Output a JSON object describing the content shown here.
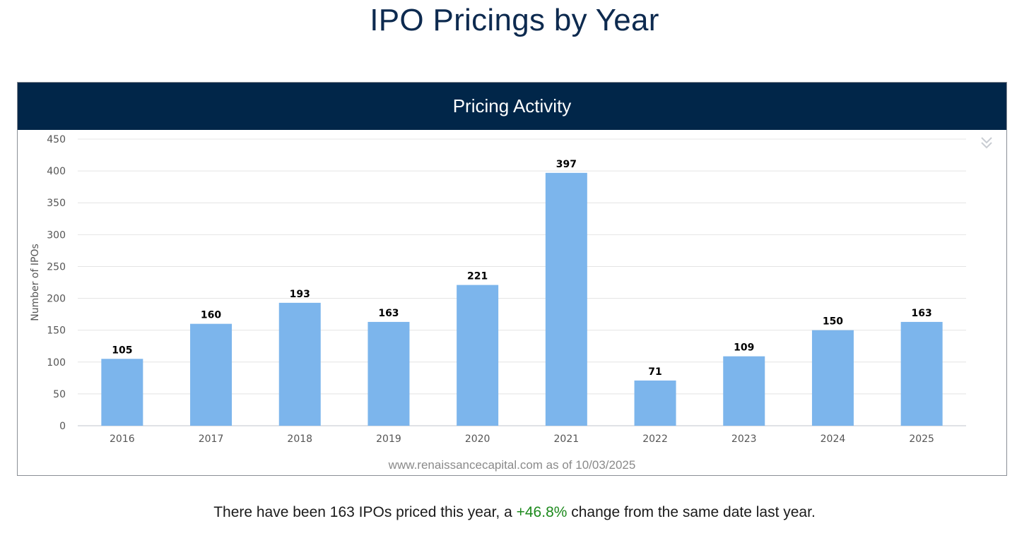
{
  "page": {
    "title": "IPO Pricings by Year"
  },
  "panel": {
    "header": "Pricing Activity",
    "source_note": "www.renaissancecapital.com as of 10/03/2025",
    "collapse_icon": "double-chevron-down-icon"
  },
  "summary": {
    "prefix": "There have been 163 IPOs priced this year, a ",
    "change": "+46.8%",
    "suffix": " change from the same date last year."
  },
  "colors": {
    "bar": "#7cb5ec",
    "header_bg": "#012649",
    "title": "#0d2a4f",
    "positive_change": "#1d8a1d"
  },
  "chart_data": {
    "type": "bar",
    "title": "Pricing Activity",
    "xlabel": "",
    "ylabel": "Number of IPOs",
    "categories": [
      "2016",
      "2017",
      "2018",
      "2019",
      "2020",
      "2021",
      "2022",
      "2023",
      "2024",
      "2025"
    ],
    "values": [
      105,
      160,
      193,
      163,
      221,
      397,
      71,
      109,
      150,
      163
    ],
    "ylim": [
      0,
      450
    ],
    "yticks": [
      0,
      50,
      100,
      150,
      200,
      250,
      300,
      350,
      400,
      450
    ],
    "grid": true,
    "data_labels": true,
    "legend": "none"
  }
}
